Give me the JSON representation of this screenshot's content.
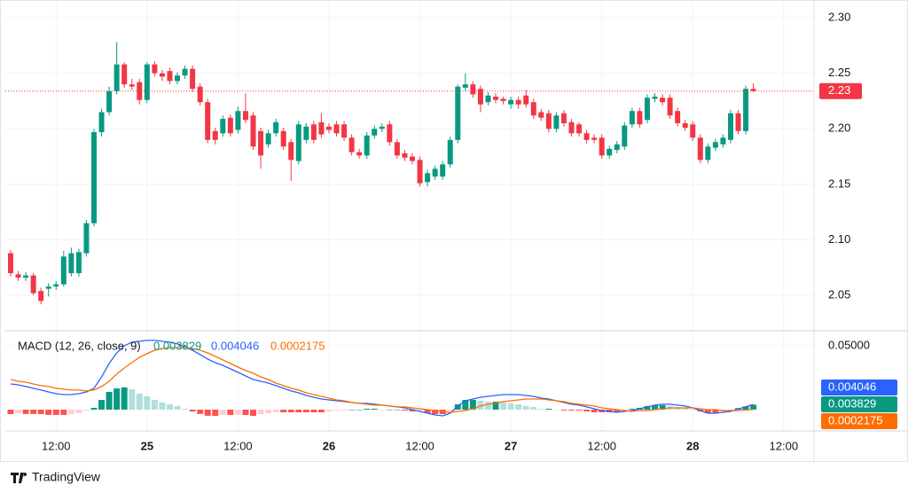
{
  "brand": "TradingView",
  "chart_data": {
    "type": "candlestick",
    "up_color": "#089981",
    "down_color": "#f23645",
    "grid": true,
    "last_label": "2.23",
    "xlim": [
      -0.7,
      106
    ],
    "xticks": [
      {
        "value": 6,
        "label": "12:00"
      },
      {
        "value": 18,
        "label": "25"
      },
      {
        "value": 30,
        "label": "12:00"
      },
      {
        "value": 42,
        "label": "26"
      },
      {
        "value": 54,
        "label": "12:00"
      },
      {
        "value": 66,
        "label": "27"
      },
      {
        "value": 78,
        "label": "12:00"
      },
      {
        "value": 90,
        "label": "28"
      },
      {
        "value": 102,
        "label": "12:00"
      }
    ],
    "ylim": [
      2.019,
      2.308
    ],
    "yticks": [
      2.05,
      {
        "value": 2.1,
        "label": "2.10"
      },
      2.15,
      {
        "value": 2.2,
        "label": "2.20"
      },
      2.25,
      {
        "value": 2.3,
        "label": "2.30"
      }
    ],
    "candles": [
      [
        2.088,
        2.091,
        2.067,
        2.07
      ],
      [
        2.069,
        2.072,
        2.063,
        2.066
      ],
      [
        2.066,
        2.071,
        2.063,
        2.068
      ],
      [
        2.068,
        2.07,
        2.05,
        2.052
      ],
      [
        2.054,
        2.057,
        2.042,
        2.045
      ],
      [
        2.056,
        2.061,
        2.049,
        2.058
      ],
      [
        2.058,
        2.063,
        2.055,
        2.06
      ],
      [
        2.06,
        2.09,
        2.058,
        2.085
      ],
      [
        2.07,
        2.093,
        2.067,
        2.088
      ],
      [
        2.07,
        2.092,
        2.067,
        2.089
      ],
      [
        2.088,
        2.118,
        2.085,
        2.115
      ],
      [
        2.115,
        2.2,
        2.112,
        2.197
      ],
      [
        2.197,
        2.218,
        2.193,
        2.215
      ],
      [
        2.215,
        2.238,
        2.212,
        2.234
      ],
      [
        2.234,
        2.278,
        2.231,
        2.258
      ],
      [
        2.258,
        2.26,
        2.237,
        2.24
      ],
      [
        2.24,
        2.245,
        2.235,
        2.238
      ],
      [
        2.242,
        2.245,
        2.222,
        2.226
      ],
      [
        2.226,
        2.26,
        2.223,
        2.258
      ],
      [
        2.258,
        2.261,
        2.247,
        2.25
      ],
      [
        2.25,
        2.253,
        2.243,
        2.247
      ],
      [
        2.252,
        2.255,
        2.24,
        2.243
      ],
      [
        2.243,
        2.251,
        2.24,
        2.248
      ],
      [
        2.248,
        2.257,
        2.245,
        2.254
      ],
      [
        2.254,
        2.257,
        2.233,
        2.236
      ],
      [
        2.238,
        2.241,
        2.221,
        2.224
      ],
      [
        2.224,
        2.227,
        2.187,
        2.19
      ],
      [
        2.198,
        2.201,
        2.186,
        2.19
      ],
      [
        2.196,
        2.212,
        2.193,
        2.209
      ],
      [
        2.21,
        2.213,
        2.193,
        2.196
      ],
      [
        2.199,
        2.22,
        2.196,
        2.216
      ],
      [
        2.216,
        2.232,
        2.205,
        2.208
      ],
      [
        2.212,
        2.215,
        2.181,
        2.184
      ],
      [
        2.198,
        2.201,
        2.164,
        2.176
      ],
      [
        2.186,
        2.199,
        2.183,
        2.196
      ],
      [
        2.196,
        2.209,
        2.193,
        2.206
      ],
      [
        2.198,
        2.201,
        2.181,
        2.184
      ],
      [
        2.188,
        2.191,
        2.153,
        2.172
      ],
      [
        2.171,
        2.207,
        2.168,
        2.204
      ],
      [
        2.19,
        2.205,
        2.187,
        2.202
      ],
      [
        2.204,
        2.207,
        2.187,
        2.19
      ],
      [
        2.206,
        2.214,
        2.192,
        2.195
      ],
      [
        2.202,
        2.205,
        2.196,
        2.199
      ],
      [
        2.204,
        2.207,
        2.193,
        2.196
      ],
      [
        2.204,
        2.207,
        2.189,
        2.192
      ],
      [
        2.192,
        2.195,
        2.176,
        2.179
      ],
      [
        2.179,
        2.182,
        2.173,
        2.176
      ],
      [
        2.176,
        2.197,
        2.173,
        2.194
      ],
      [
        2.194,
        2.203,
        2.191,
        2.2
      ],
      [
        2.2,
        2.205,
        2.197,
        2.202
      ],
      [
        2.204,
        2.207,
        2.185,
        2.188
      ],
      [
        2.188,
        2.191,
        2.173,
        2.176
      ],
      [
        2.178,
        2.181,
        2.171,
        2.174
      ],
      [
        2.175,
        2.178,
        2.168,
        2.171
      ],
      [
        2.172,
        2.175,
        2.148,
        2.151
      ],
      [
        2.152,
        2.163,
        2.148,
        2.16
      ],
      [
        2.157,
        2.167,
        2.154,
        2.164
      ],
      [
        2.157,
        2.171,
        2.154,
        2.168
      ],
      [
        2.168,
        2.193,
        2.165,
        2.19
      ],
      [
        2.19,
        2.24,
        2.187,
        2.238
      ],
      [
        2.237,
        2.25,
        2.234,
        2.24
      ],
      [
        2.24,
        2.243,
        2.228,
        2.231
      ],
      [
        2.236,
        2.239,
        2.215,
        2.222
      ],
      [
        2.224,
        2.233,
        2.221,
        2.23
      ],
      [
        2.229,
        2.232,
        2.223,
        2.226
      ],
      [
        2.227,
        2.229,
        2.222,
        2.225
      ],
      [
        2.222,
        2.229,
        2.218,
        2.226
      ],
      [
        2.226,
        2.229,
        2.218,
        2.222
      ],
      [
        2.23,
        2.235,
        2.219,
        2.222
      ],
      [
        2.224,
        2.227,
        2.209,
        2.212
      ],
      [
        2.215,
        2.218,
        2.207,
        2.21
      ],
      [
        2.214,
        2.217,
        2.197,
        2.2
      ],
      [
        2.2,
        2.215,
        2.197,
        2.212
      ],
      [
        2.214,
        2.217,
        2.202,
        2.205
      ],
      [
        2.206,
        2.209,
        2.193,
        2.196
      ],
      [
        2.204,
        2.206,
        2.193,
        2.196
      ],
      [
        2.196,
        2.199,
        2.187,
        2.19
      ],
      [
        2.192,
        2.195,
        2.187,
        2.19
      ],
      [
        2.192,
        2.195,
        2.173,
        2.176
      ],
      [
        2.176,
        2.185,
        2.173,
        2.182
      ],
      [
        2.181,
        2.189,
        2.178,
        2.186
      ],
      [
        2.184,
        2.206,
        2.181,
        2.203
      ],
      [
        2.204,
        2.219,
        2.201,
        2.216
      ],
      [
        2.216,
        2.219,
        2.201,
        2.204
      ],
      [
        2.208,
        2.231,
        2.205,
        2.228
      ],
      [
        2.227,
        2.232,
        2.224,
        2.229
      ],
      [
        2.228,
        2.231,
        2.221,
        2.224
      ],
      [
        2.228,
        2.231,
        2.209,
        2.212
      ],
      [
        2.216,
        2.219,
        2.202,
        2.205
      ],
      [
        2.205,
        2.208,
        2.198,
        2.201
      ],
      [
        2.204,
        2.207,
        2.189,
        2.192
      ],
      [
        2.192,
        2.195,
        2.169,
        2.172
      ],
      [
        2.172,
        2.187,
        2.169,
        2.184
      ],
      [
        2.183,
        2.191,
        2.18,
        2.188
      ],
      [
        2.186,
        2.195,
        2.183,
        2.192
      ],
      [
        2.19,
        2.217,
        2.187,
        2.214
      ],
      [
        2.214,
        2.217,
        2.195,
        2.198
      ],
      [
        2.198,
        2.239,
        2.195,
        2.236
      ],
      [
        2.236,
        2.241,
        2.233,
        2.234
      ]
    ],
    "macd": {
      "title": "MACD (12, 26, close, 9)",
      "ylim": [
        -0.0146,
        0.059
      ],
      "yticks": [
        {
          "value": 0.05,
          "label": "0.05000"
        }
      ],
      "macd": {
        "color": "#2962ff",
        "values": [
          0.0201,
          0.0194,
          0.0181,
          0.0167,
          0.0153,
          0.0139,
          0.0125,
          0.0118,
          0.0118,
          0.0125,
          0.0139,
          0.0167,
          0.0257,
          0.0361,
          0.0444,
          0.05,
          0.0528,
          0.0535,
          0.0542,
          0.0542,
          0.0535,
          0.0528,
          0.0514,
          0.0493,
          0.0465,
          0.0431,
          0.0396,
          0.0368,
          0.0347,
          0.0319,
          0.0292,
          0.0264,
          0.0236,
          0.0222,
          0.0208,
          0.0188,
          0.0167,
          0.0146,
          0.0132,
          0.0111,
          0.0097,
          0.0083,
          0.0076,
          0.0069,
          0.0063,
          0.0056,
          0.0049,
          0.0049,
          0.0042,
          0.0035,
          0.0028,
          0.0021,
          0.0014,
          0,
          -0.0014,
          -0.0028,
          -0.0042,
          -0.0049,
          -0.0028,
          0.0028,
          0.0069,
          0.0083,
          0.0097,
          0.0104,
          0.0111,
          0.0118,
          0.0118,
          0.0118,
          0.0111,
          0.0104,
          0.009,
          0.0083,
          0.0069,
          0.0056,
          0.0042,
          0.0035,
          0.0021,
          0.0007,
          -0.0007,
          -0.0014,
          -0.0021,
          -0.0014,
          -0.0007,
          0.0007,
          0.0021,
          0.0035,
          0.0042,
          0.0042,
          0.0035,
          0.0028,
          0.0014,
          -0.0007,
          -0.0028,
          -0.0028,
          -0.0021,
          -0.0014,
          0.0005,
          0.0022,
          0.004046
        ]
      },
      "signal": {
        "color": "#ff6d00",
        "values": [
          0.0236,
          0.0222,
          0.0215,
          0.0201,
          0.0188,
          0.0181,
          0.0167,
          0.016,
          0.0153,
          0.0153,
          0.0146,
          0.0153,
          0.0181,
          0.0222,
          0.0278,
          0.0326,
          0.0368,
          0.041,
          0.0438,
          0.0465,
          0.0479,
          0.0486,
          0.0486,
          0.0486,
          0.0479,
          0.0465,
          0.0444,
          0.0417,
          0.0389,
          0.0361,
          0.0333,
          0.0306,
          0.0285,
          0.0257,
          0.0236,
          0.0208,
          0.0188,
          0.0167,
          0.0153,
          0.0132,
          0.0118,
          0.0104,
          0.009,
          0.0076,
          0.0069,
          0.0056,
          0.0049,
          0.0042,
          0.0035,
          0.0035,
          0.0028,
          0.0021,
          0.0021,
          0.0014,
          0.0007,
          0,
          -0.0007,
          -0.0014,
          -0.0021,
          -0.0014,
          -0.0007,
          0.0007,
          0.0028,
          0.0042,
          0.0049,
          0.0063,
          0.0069,
          0.0076,
          0.0083,
          0.0083,
          0.0083,
          0.0076,
          0.0069,
          0.0063,
          0.0049,
          0.0042,
          0.0035,
          0.0028,
          0.0014,
          0.0007,
          0,
          -0.0007,
          -0.0014,
          -0.0007,
          -0.0007,
          0,
          0.0007,
          0.0014,
          0.0014,
          0.0014,
          0.0014,
          0.0007,
          0,
          0,
          -0.0007,
          -0.0007,
          -0.0007,
          -0.0003,
          0.0002175
        ]
      },
      "histogram": {
        "colors": [
          "#089981",
          "#b2dfdb",
          "#ff5252",
          "#ffcdd2"
        ],
        "values": [
          -0.0035,
          -0.0028,
          -0.0034,
          -0.0034,
          -0.0035,
          -0.0042,
          -0.0042,
          -0.0042,
          -0.0035,
          -0.0028,
          -0.0007,
          0.0014,
          0.0076,
          0.0139,
          0.0166,
          0.0174,
          0.016,
          0.0125,
          0.0104,
          0.0077,
          0.0056,
          0.0042,
          0.0028,
          0.0007,
          -0.0014,
          -0.0034,
          -0.0048,
          -0.0049,
          -0.0042,
          -0.0042,
          -0.0041,
          -0.0042,
          -0.0049,
          -0.0035,
          -0.0028,
          -0.002,
          -0.0021,
          -0.0021,
          -0.0021,
          -0.0021,
          -0.0021,
          -0.0021,
          -0.0014,
          -0.0007,
          -0.0006,
          0,
          0,
          0.0007,
          0.0007,
          0,
          0,
          0,
          -0.0007,
          -0.0014,
          -0.0007,
          -0.0028,
          -0.0035,
          -0.0035,
          -0.0007,
          0.0042,
          0.0076,
          0.0076,
          0.0069,
          0.0062,
          0.0062,
          0.0055,
          0.0049,
          0.0042,
          0.0028,
          0.0021,
          0.0007,
          0.0007,
          0,
          -0.0007,
          -0.0007,
          -0.0007,
          -0.0014,
          -0.0021,
          -0.0021,
          -0.0021,
          -0.0021,
          -0.0007,
          0.0007,
          0.0014,
          0.0028,
          0.0035,
          0.0035,
          0.0028,
          0.0021,
          0.0014,
          0,
          -0.0014,
          -0.0028,
          -0.0028,
          -0.0014,
          -0.0007,
          0.0012,
          0.0025,
          0.003829
        ]
      }
    }
  }
}
